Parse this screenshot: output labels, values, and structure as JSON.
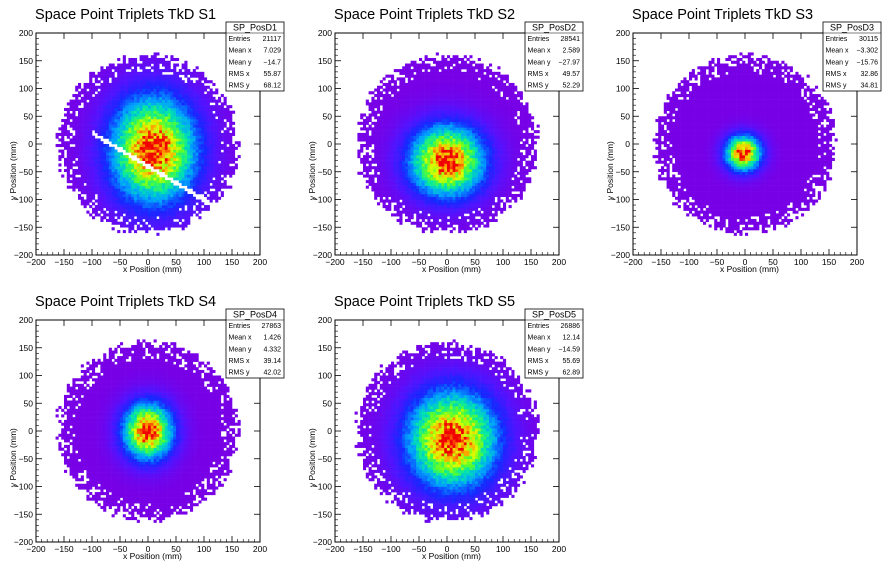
{
  "chart_data": [
    {
      "type": "heatmap",
      "title": "Space Point Triplets TkD S1",
      "xlabel": "x Position (mm)",
      "ylabel": "y Position (mm)",
      "xlim": [
        -200,
        200
      ],
      "ylim": [
        -200,
        200
      ],
      "xticks": [
        "−200",
        "−150",
        "−100",
        "−50",
        "0",
        "50",
        "100",
        "150",
        "200"
      ],
      "yticks": [
        "−200",
        "−150",
        "−100",
        "−50",
        "0",
        "50",
        "100",
        "150",
        "200"
      ],
      "stats": {
        "name": "SP_PosD1",
        "rows": [
          {
            "key": "Entries",
            "value": "21117"
          },
          {
            "key": "Mean x",
            "value": "7.029"
          },
          {
            "key": "Mean y",
            "value": "−14.7"
          },
          {
            "key": "RMS x",
            "value": "55.87"
          },
          {
            "key": "RMS y",
            "value": "68.12"
          }
        ]
      },
      "distribution": {
        "center_x": 10,
        "center_y": -10,
        "sigma_x": 48,
        "sigma_y": 60,
        "radius": 160,
        "gap_slope": -0.6,
        "gap_intercept": -40,
        "gap_width": 10
      }
    },
    {
      "type": "heatmap",
      "title": "Space Point Triplets TkD S2",
      "xlabel": "x Position (mm)",
      "ylabel": "y Position (mm)",
      "xlim": [
        -200,
        200
      ],
      "ylim": [
        -200,
        200
      ],
      "xticks": [
        "−200",
        "−150",
        "−100",
        "−50",
        "0",
        "50",
        "100",
        "150",
        "200"
      ],
      "yticks": [
        "−200",
        "−150",
        "−100",
        "−50",
        "0",
        "50",
        "100",
        "150",
        "200"
      ],
      "stats": {
        "name": "SP_PosD2",
        "rows": [
          {
            "key": "Entries",
            "value": "28541"
          },
          {
            "key": "Mean x",
            "value": "2.589"
          },
          {
            "key": "Mean y",
            "value": "−27.97"
          },
          {
            "key": "RMS x",
            "value": "49.57"
          },
          {
            "key": "RMS y",
            "value": "52.29"
          }
        ]
      },
      "distribution": {
        "center_x": 0,
        "center_y": -30,
        "sigma_x": 42,
        "sigma_y": 40,
        "radius": 160
      }
    },
    {
      "type": "heatmap",
      "title": "Space Point Triplets TkD S3",
      "xlabel": "x Position (mm)",
      "ylabel": "y Position (mm)",
      "xlim": [
        -200,
        200
      ],
      "ylim": [
        -200,
        200
      ],
      "xticks": [
        "−200",
        "−150",
        "−100",
        "−50",
        "0",
        "50",
        "100",
        "150",
        "200"
      ],
      "yticks": [
        "−200",
        "−150",
        "−100",
        "−50",
        "0",
        "50",
        "100",
        "150",
        "200"
      ],
      "stats": {
        "name": "SP_PosD3",
        "rows": [
          {
            "key": "Entries",
            "value": "30115"
          },
          {
            "key": "Mean x",
            "value": "−3.302"
          },
          {
            "key": "Mean y",
            "value": "−15.76"
          },
          {
            "key": "RMS x",
            "value": "32.86"
          },
          {
            "key": "RMS y",
            "value": "34.81"
          }
        ]
      },
      "distribution": {
        "center_x": -3,
        "center_y": -16,
        "sigma_x": 20,
        "sigma_y": 20,
        "radius": 160
      }
    },
    {
      "type": "heatmap",
      "title": "Space Point Triplets TkD S4",
      "xlabel": "x Position (mm)",
      "ylabel": "y Position (mm)",
      "xlim": [
        -200,
        200
      ],
      "ylim": [
        -200,
        200
      ],
      "xticks": [
        "−200",
        "−150",
        "−100",
        "−50",
        "0",
        "50",
        "100",
        "150",
        "200"
      ],
      "yticks": [
        "−200",
        "−150",
        "−100",
        "−50",
        "0",
        "50",
        "100",
        "150",
        "200"
      ],
      "stats": {
        "name": "SP_PosD4",
        "rows": [
          {
            "key": "Entries",
            "value": "27863"
          },
          {
            "key": "Mean x",
            "value": "1.426"
          },
          {
            "key": "Mean y",
            "value": "4.332"
          },
          {
            "key": "RMS x",
            "value": "39.14"
          },
          {
            "key": "RMS y",
            "value": "42.02"
          }
        ]
      },
      "distribution": {
        "center_x": 0,
        "center_y": 0,
        "sigma_x": 28,
        "sigma_y": 32,
        "radius": 160
      }
    },
    {
      "type": "heatmap",
      "title": "Space Point Triplets TkD S5",
      "xlabel": "x Position (mm)",
      "ylabel": "y Position (mm)",
      "xlim": [
        -200,
        200
      ],
      "ylim": [
        -200,
        200
      ],
      "xticks": [
        "−200",
        "−150",
        "−100",
        "−50",
        "0",
        "50",
        "100",
        "150",
        "200"
      ],
      "yticks": [
        "−200",
        "−150",
        "−100",
        "−50",
        "0",
        "50",
        "100",
        "150",
        "200"
      ],
      "stats": {
        "name": "SP_PosD5",
        "rows": [
          {
            "key": "Entries",
            "value": "26886"
          },
          {
            "key": "Mean x",
            "value": "12.14"
          },
          {
            "key": "Mean y",
            "value": "−14.59"
          },
          {
            "key": "RMS x",
            "value": "55.69"
          },
          {
            "key": "RMS y",
            "value": "62.89"
          }
        ]
      },
      "distribution": {
        "center_x": 10,
        "center_y": -15,
        "sigma_x": 50,
        "sigma_y": 55,
        "radius": 160
      }
    }
  ]
}
